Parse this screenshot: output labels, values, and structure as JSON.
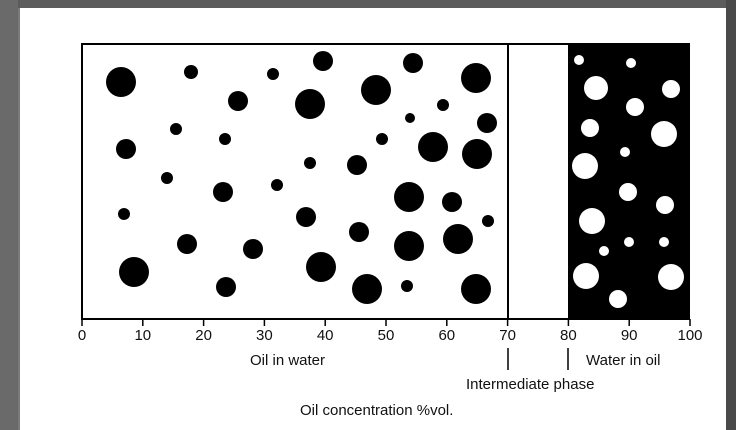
{
  "figure": {
    "colors": {
      "ink": "#000000",
      "paper": "#ffffff"
    },
    "regions": [
      {
        "name": "oil-in-water",
        "from": 0,
        "to": 70,
        "label": "Oil in water"
      },
      {
        "name": "intermediate-phase",
        "from": 70,
        "to": 80,
        "label": "Intermediate phase"
      },
      {
        "name": "water-in-oil",
        "from": 80,
        "to": 100,
        "label": "Water in oil"
      }
    ],
    "axis": {
      "ticks": [
        "0",
        "10",
        "20",
        "30",
        "40",
        "50",
        "60",
        "70",
        "80",
        "90",
        "100"
      ],
      "title": "Oil concentration %vol."
    }
  }
}
